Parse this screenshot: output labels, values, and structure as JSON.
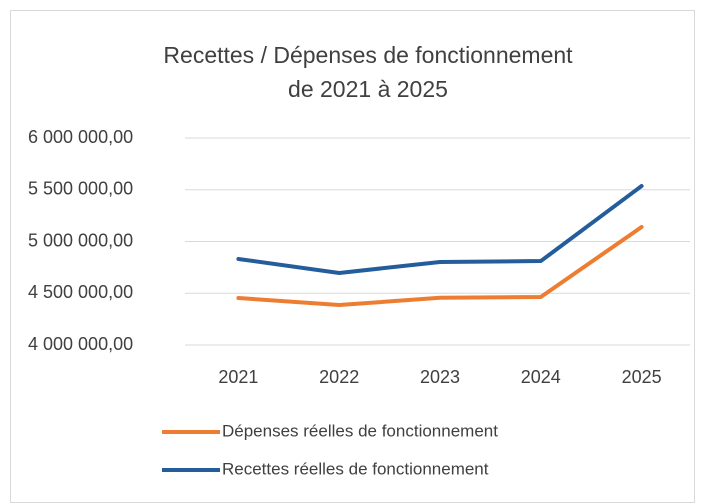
{
  "chart_data": {
    "type": "line",
    "title": [
      "Recettes / Dépenses de fonctionnement",
      "de 2021 à 2025"
    ],
    "categories": [
      "2021",
      "2022",
      "2023",
      "2024",
      "2025"
    ],
    "series": [
      {
        "name": "Dépenses réelles de fonctionnement",
        "color": "#ed7d31",
        "values": [
          4454000,
          4386000,
          4456000,
          4464000,
          5140000
        ]
      },
      {
        "name": "Recettes réelles de fonctionnement",
        "color": "#245d9b",
        "values": [
          4831000,
          4696000,
          4802000,
          4811000,
          5536000
        ]
      }
    ],
    "ylim": [
      4000000,
      6000000
    ],
    "yticks": [
      {
        "value": 4000000,
        "label": "4 000 000,00"
      },
      {
        "value": 4500000,
        "label": "4 500 000,00"
      },
      {
        "value": 5000000,
        "label": "5 000 000,00"
      },
      {
        "value": 5500000,
        "label": "5 500 000,00"
      },
      {
        "value": 6000000,
        "label": "6 000 000,00"
      }
    ],
    "grid": true,
    "legend": "bottom"
  }
}
